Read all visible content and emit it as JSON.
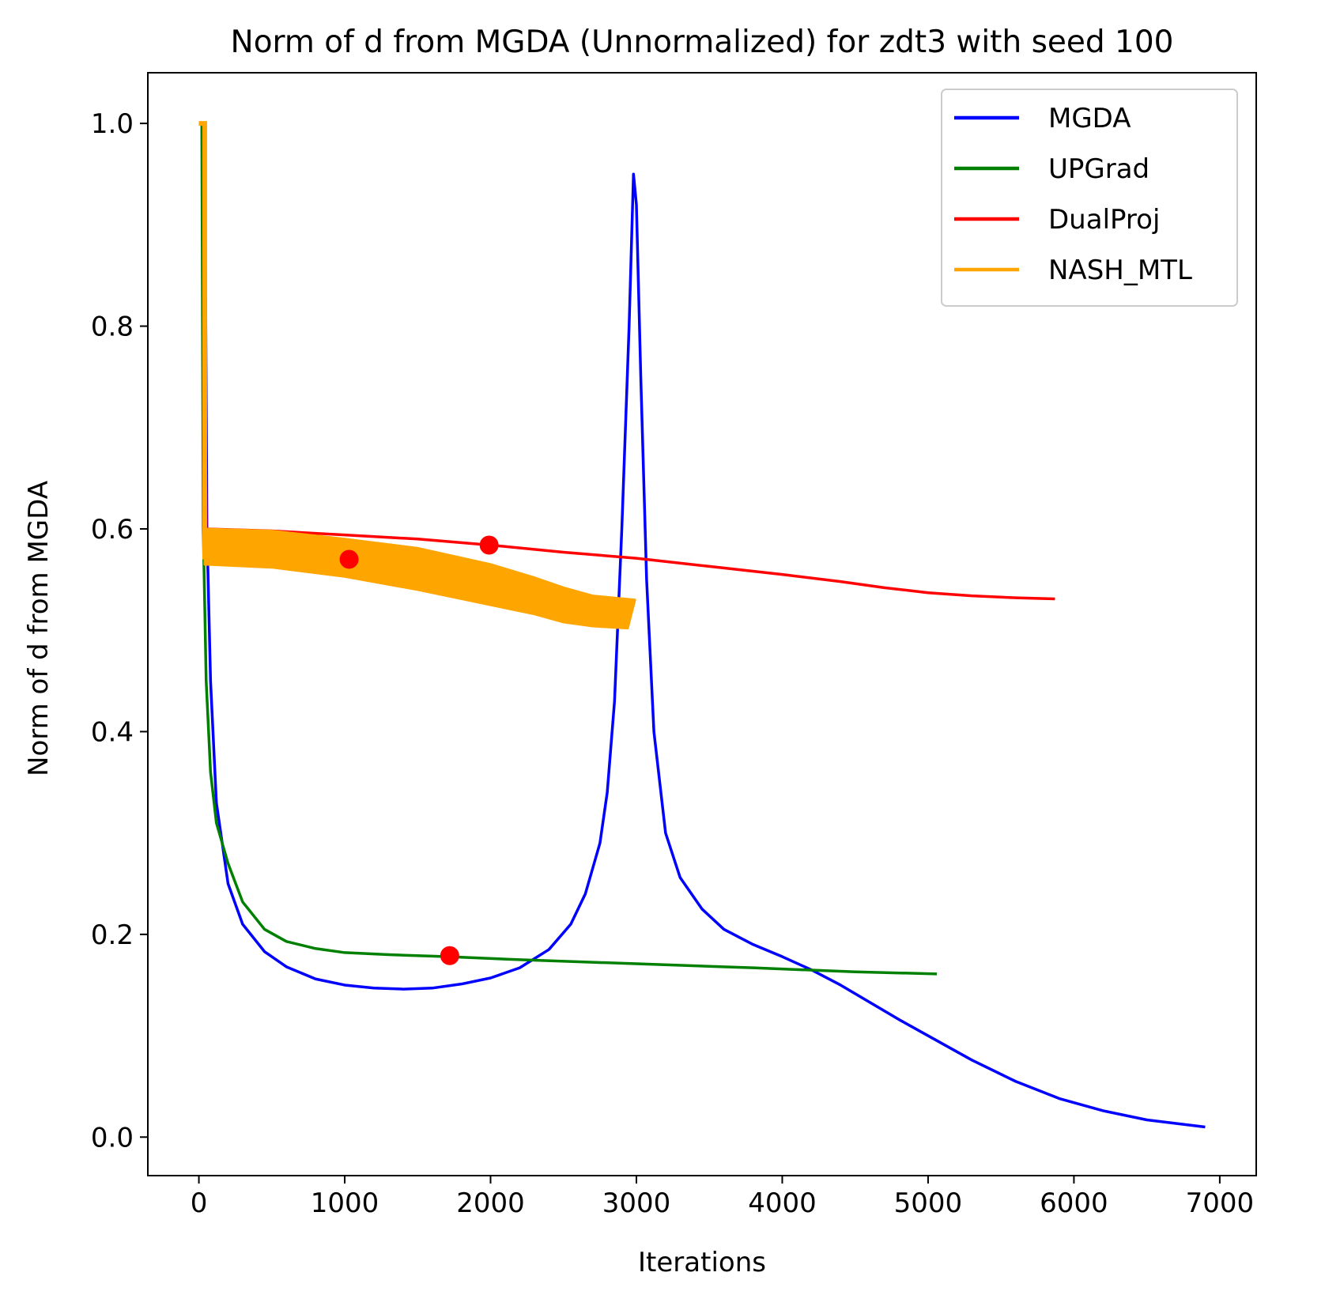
{
  "chart_data": {
    "type": "line",
    "title": "Norm of d from MGDA (Unnormalized) for zdt3 with seed 100",
    "xlabel": "Iterations",
    "ylabel": "Norm of d from MGDA",
    "xlim": [
      -350,
      7250
    ],
    "ylim": [
      -0.038,
      1.05
    ],
    "xticks": [
      0,
      1000,
      2000,
      3000,
      4000,
      5000,
      6000,
      7000
    ],
    "yticks": [
      0.0,
      0.2,
      0.4,
      0.6,
      0.8,
      1.0
    ],
    "xtick_labels": [
      "0",
      "1000",
      "2000",
      "3000",
      "4000",
      "5000",
      "6000",
      "7000"
    ],
    "ytick_labels": [
      "0.0",
      "0.2",
      "0.4",
      "0.6",
      "0.8",
      "1.0"
    ],
    "grid": false,
    "legend_position": "top-right",
    "series": [
      {
        "name": "MGDA",
        "color": "#0000ff",
        "points": [
          [
            30,
            1.0
          ],
          [
            40,
            1.0
          ],
          [
            55,
            0.6
          ],
          [
            80,
            0.45
          ],
          [
            120,
            0.33
          ],
          [
            200,
            0.25
          ],
          [
            300,
            0.21
          ],
          [
            450,
            0.183
          ],
          [
            600,
            0.168
          ],
          [
            800,
            0.156
          ],
          [
            1000,
            0.15
          ],
          [
            1200,
            0.147
          ],
          [
            1400,
            0.146
          ],
          [
            1600,
            0.147
          ],
          [
            1800,
            0.151
          ],
          [
            2000,
            0.157
          ],
          [
            2200,
            0.167
          ],
          [
            2400,
            0.185
          ],
          [
            2550,
            0.21
          ],
          [
            2650,
            0.24
          ],
          [
            2750,
            0.29
          ],
          [
            2800,
            0.34
          ],
          [
            2850,
            0.43
          ],
          [
            2900,
            0.6
          ],
          [
            2950,
            0.8
          ],
          [
            2980,
            0.95
          ],
          [
            3000,
            0.92
          ],
          [
            3030,
            0.75
          ],
          [
            3070,
            0.55
          ],
          [
            3120,
            0.4
          ],
          [
            3200,
            0.3
          ],
          [
            3300,
            0.256
          ],
          [
            3450,
            0.225
          ],
          [
            3600,
            0.205
          ],
          [
            3800,
            0.19
          ],
          [
            4000,
            0.178
          ],
          [
            4200,
            0.165
          ],
          [
            4400,
            0.15
          ],
          [
            4600,
            0.133
          ],
          [
            4800,
            0.116
          ],
          [
            5000,
            0.1
          ],
          [
            5300,
            0.076
          ],
          [
            5600,
            0.055
          ],
          [
            5900,
            0.038
          ],
          [
            6200,
            0.026
          ],
          [
            6500,
            0.017
          ],
          [
            6900,
            0.01
          ]
        ]
      },
      {
        "name": "UPGrad",
        "color": "#008000",
        "points": [
          [
            20,
            1.0
          ],
          [
            25,
            0.8
          ],
          [
            30,
            0.6
          ],
          [
            50,
            0.45
          ],
          [
            80,
            0.36
          ],
          [
            120,
            0.31
          ],
          [
            200,
            0.27
          ],
          [
            300,
            0.232
          ],
          [
            450,
            0.205
          ],
          [
            600,
            0.193
          ],
          [
            800,
            0.186
          ],
          [
            1000,
            0.182
          ],
          [
            1300,
            0.18
          ],
          [
            1700,
            0.178
          ],
          [
            2200,
            0.175
          ],
          [
            3000,
            0.171
          ],
          [
            3800,
            0.167
          ],
          [
            4500,
            0.163
          ],
          [
            5060,
            0.161
          ]
        ]
      },
      {
        "name": "DualProj",
        "color": "#ff0000",
        "points": [
          [
            0,
            1.0
          ],
          [
            30,
            1.0
          ],
          [
            50,
            0.6
          ],
          [
            500,
            0.598
          ],
          [
            1000,
            0.594
          ],
          [
            1500,
            0.59
          ],
          [
            2000,
            0.584
          ],
          [
            2500,
            0.577
          ],
          [
            3000,
            0.571
          ],
          [
            3500,
            0.563
          ],
          [
            4000,
            0.555
          ],
          [
            4400,
            0.548
          ],
          [
            4700,
            0.542
          ],
          [
            5000,
            0.537
          ],
          [
            5300,
            0.534
          ],
          [
            5600,
            0.532
          ],
          [
            5870,
            0.531
          ]
        ]
      },
      {
        "name": "NASH_MTL",
        "color": "#ffa500",
        "band": true,
        "upper": [
          [
            40,
            0.6
          ],
          [
            500,
            0.598
          ],
          [
            1000,
            0.59
          ],
          [
            1500,
            0.581
          ],
          [
            2000,
            0.565
          ],
          [
            2300,
            0.552
          ],
          [
            2500,
            0.542
          ],
          [
            2700,
            0.534
          ],
          [
            2990,
            0.53
          ]
        ],
        "lower": [
          [
            40,
            0.565
          ],
          [
            500,
            0.562
          ],
          [
            1000,
            0.553
          ],
          [
            1500,
            0.54
          ],
          [
            2000,
            0.525
          ],
          [
            2300,
            0.516
          ],
          [
            2500,
            0.508
          ],
          [
            2700,
            0.504
          ],
          [
            2940,
            0.502
          ]
        ],
        "spike": [
          [
            0,
            1.0
          ],
          [
            40,
            1.0
          ],
          [
            40,
            0.57
          ]
        ]
      }
    ],
    "markers": [
      {
        "x": 1030,
        "y": 0.57,
        "color": "#ff0000"
      },
      {
        "x": 1990,
        "y": 0.584,
        "color": "#ff0000"
      },
      {
        "x": 1720,
        "y": 0.179,
        "color": "#ff0000"
      }
    ]
  }
}
